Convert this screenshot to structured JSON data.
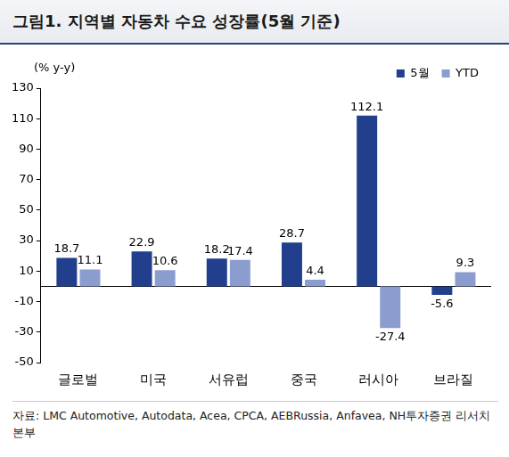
{
  "chart_data": {
    "type": "bar",
    "title": "그림1. 지역별 자동차 수요 성장률(5월 기준)",
    "y_label": "(% y-y)",
    "categories": [
      "글로벌",
      "미국",
      "서유럽",
      "중국",
      "러시아",
      "브라질"
    ],
    "series": [
      {
        "name": "5월",
        "color": "#213f8c",
        "values": [
          18.7,
          22.9,
          18.2,
          28.7,
          112.1,
          -5.6
        ]
      },
      {
        "name": "YTD",
        "color": "#8b9dcf",
        "values": [
          11.1,
          10.6,
          17.4,
          4.4,
          -27.4,
          9.3
        ]
      }
    ],
    "ylim": [
      -50,
      130
    ],
    "yticks": [
      -50,
      -30,
      -10,
      10,
      30,
      50,
      70,
      90,
      110,
      130
    ],
    "grid": false,
    "legend": "upper right",
    "data_labels": true,
    "source": "자료: LMC Automotive, Autodata, Acea, CPCA, AEBRussia, Anfavea, NH투자증권 리서치본부"
  }
}
